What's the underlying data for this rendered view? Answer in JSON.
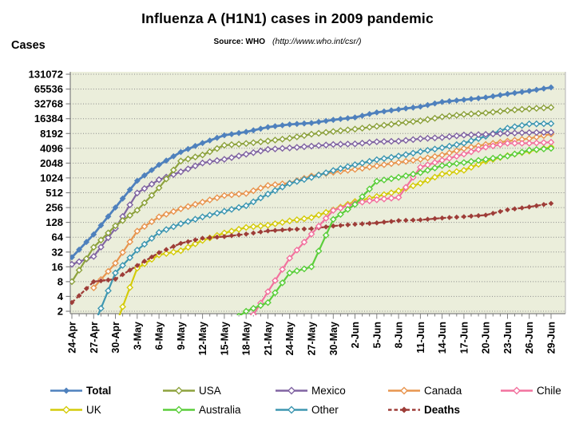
{
  "title": "Influenza A (H1N1) cases in 2009 pandemic",
  "subtitle": {
    "label": "Source: WHO",
    "url_note": "(http://www.who.int/csr/)"
  },
  "y_axis_label": "Cases",
  "chart_data": {
    "type": "line",
    "title": "Influenza A (H1N1) cases in 2009 pandemic",
    "subtitle": "Source: WHO (http://www.who.int/csr/)",
    "ylabel": "Cases",
    "xlabel": "",
    "y_scale": "log2",
    "ylim": [
      2,
      131072
    ],
    "grid": "horizontal-dotted",
    "legend_position": "bottom",
    "colors": {
      "plot_bg": "#EBEEDB",
      "grid": "#8A8A8A",
      "axis": "#808080",
      "border": "#B0B0B0"
    },
    "x_tick_labels": [
      "24-Apr",
      "27-Apr",
      "30-Apr",
      "3-May",
      "6-May",
      "9-May",
      "12-May",
      "15-May",
      "18-May",
      "21-May",
      "24-May",
      "27-May",
      "30-May",
      "2-Jun",
      "5-Jun",
      "8-Jun",
      "11-Jun",
      "14-Jun",
      "17-Jun",
      "20-Jun",
      "23-Jun",
      "26-Jun",
      "29-Jun"
    ],
    "y_ticks": [
      131072,
      65536,
      32768,
      16384,
      8192,
      4096,
      2048,
      1024,
      512,
      256,
      128,
      64,
      32,
      16,
      8,
      4,
      2
    ],
    "series": [
      {
        "name": "Total",
        "color": "#4F81BD",
        "bold": true,
        "marker": "filled-diamond",
        "line": "solid",
        "values": [
          25,
          73,
          257,
          898,
          1893,
          3440,
          5251,
          7520,
          8829,
          11034,
          12515,
          13398,
          15510,
          17410,
          21940,
          25288,
          28774,
          35928,
          39620,
          44287,
          52160,
          59814,
          70893
        ]
      },
      {
        "name": "USA",
        "color": "#8DA23D",
        "bold": false,
        "marker": "open-diamond",
        "line": "solid",
        "values": [
          8,
          40,
          109,
          226,
          642,
          2254,
          3009,
          4714,
          5123,
          5764,
          6552,
          7927,
          8975,
          10053,
          11500,
          13217,
          14800,
          17855,
          20000,
          21449,
          24000,
          26000,
          27717
        ]
      },
      {
        "name": "Mexico",
        "color": "#8064A2",
        "bold": false,
        "marker": "open-diamond",
        "line": "solid",
        "values": [
          18,
          26,
          97,
          506,
          942,
          1364,
          2059,
          2446,
          3103,
          3892,
          4174,
          4541,
          4910,
          5029,
          5563,
          5717,
          6403,
          6793,
          7624,
          7847,
          8279,
          8556,
          8680
        ]
      },
      {
        "name": "Canada",
        "color": "#E8954F",
        "bold": false,
        "marker": "open-diamond",
        "line": "solid",
        "values": [
          null,
          6,
          19,
          85,
          165,
          242,
          330,
          449,
          496,
          719,
          805,
          1118,
          1336,
          1530,
          1795,
          2115,
          2446,
          2978,
          4049,
          4905,
          5710,
          6457,
          7983
        ]
      },
      {
        "name": "Chile",
        "color": "#F2729E",
        "bold": false,
        "marker": "open-diamond",
        "line": "solid",
        "values": [
          null,
          null,
          null,
          null,
          null,
          null,
          null,
          null,
          1,
          5,
          24,
          74,
          224,
          313,
          369,
          411,
          1694,
          2335,
          3125,
          4315,
          5186,
          5186,
          5438
        ]
      },
      {
        "name": "UK",
        "color": "#D4CB0A",
        "bold": false,
        "marker": "open-diamond",
        "line": "solid",
        "values": [
          null,
          null,
          1,
          15,
          28,
          34,
          55,
          78,
          101,
          112,
          137,
          160,
          229,
          339,
          428,
          557,
          797,
          1226,
          1461,
          2245,
          2905,
          3597,
          4320
        ]
      },
      {
        "name": "Australia",
        "color": "#5BCE3B",
        "bold": false,
        "marker": "open-diamond",
        "line": "solid",
        "values": [
          null,
          null,
          null,
          null,
          null,
          null,
          null,
          1,
          2,
          3,
          12,
          16,
          147,
          297,
          876,
          1051,
          1307,
          1823,
          2112,
          2436,
          2857,
          3747,
          4090
        ]
      },
      {
        "name": "Other",
        "color": "#3E97B1",
        "bold": false,
        "marker": "open-diamond",
        "line": "solid",
        "values": [
          null,
          1,
          12,
          35,
          80,
          120,
          165,
          215,
          280,
          480,
          790,
          1050,
          1450,
          1900,
          2400,
          2850,
          3500,
          4200,
          5200,
          7200,
          10500,
          12800,
          13000
        ]
      },
      {
        "name": "Deaths",
        "color": "#9E3D38",
        "bold": true,
        "marker": "filled-diamond",
        "line": "dashed",
        "values": [
          3,
          8,
          9,
          17,
          31,
          48,
          61,
          66,
          74,
          86,
          92,
          95,
          108,
          117,
          125,
          139,
          144,
          157,
          167,
          180,
          231,
          263,
          311
        ]
      }
    ],
    "legend_rows": [
      [
        "Total",
        "USA",
        "Mexico",
        "Canada",
        "Chile"
      ],
      [
        "UK",
        "Australia",
        "Other",
        "Deaths"
      ]
    ]
  }
}
